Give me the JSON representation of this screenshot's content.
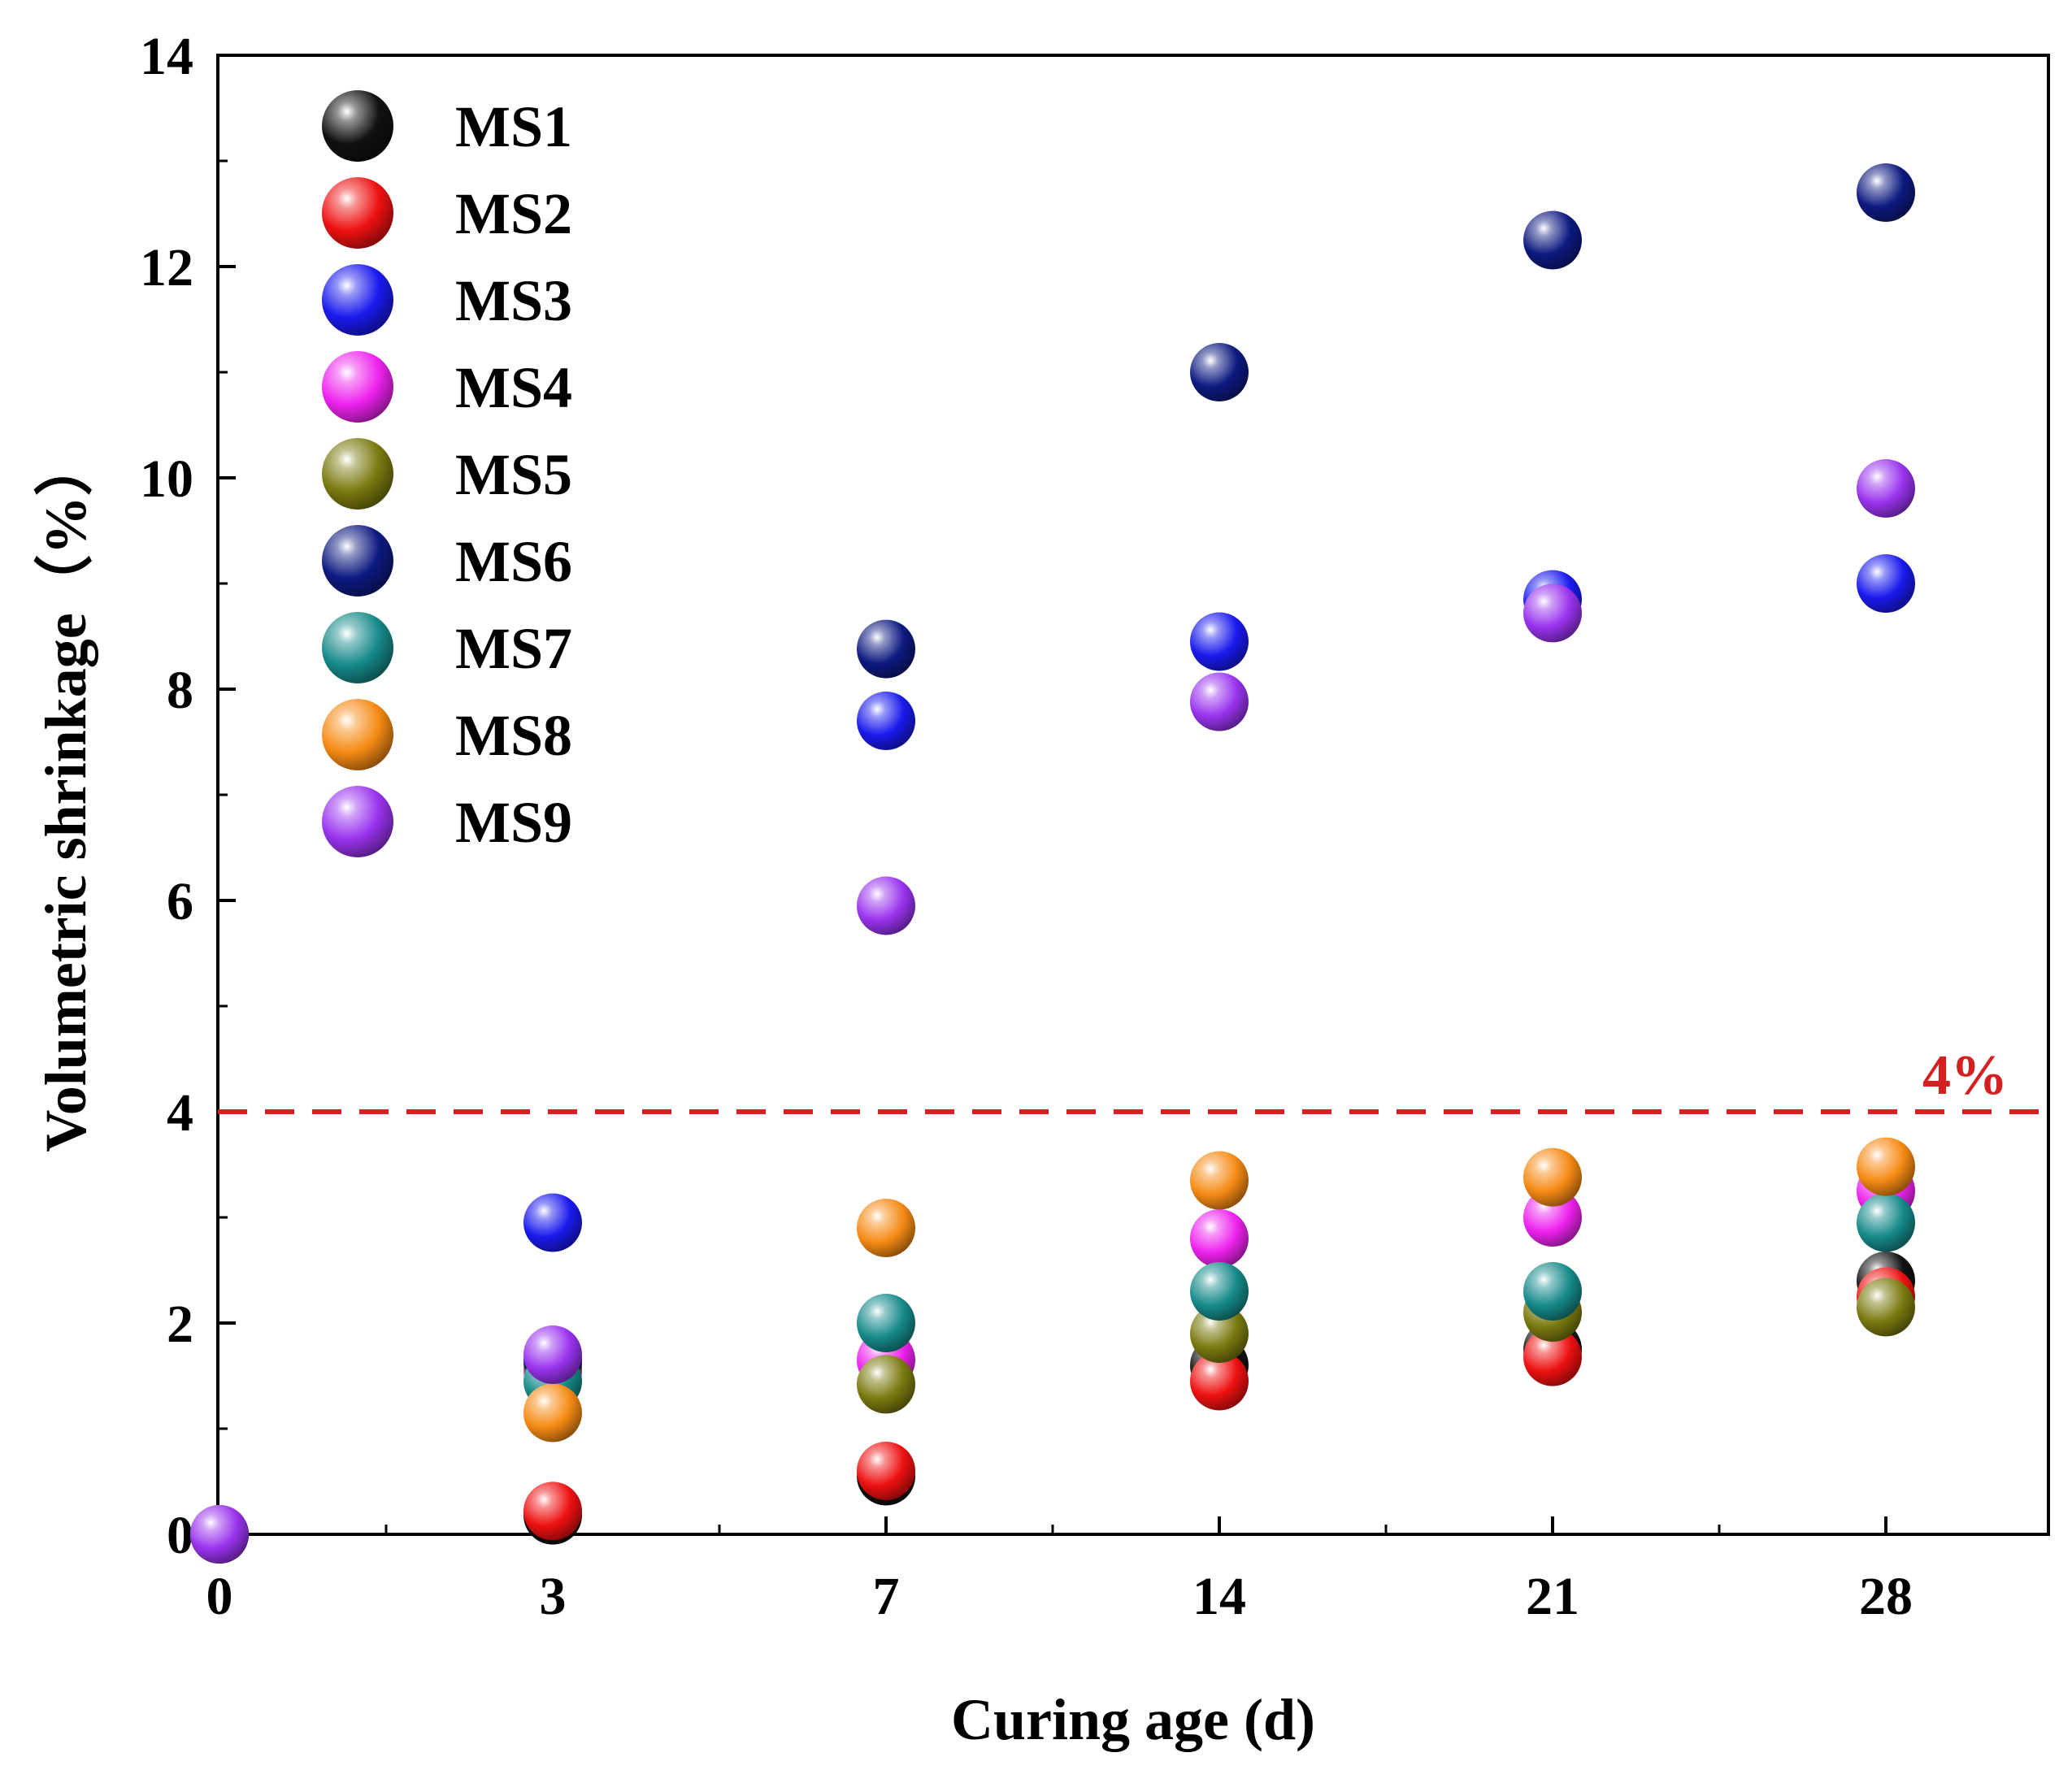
{
  "chart_data": {
    "type": "scatter",
    "xlabel": "Curing age (d)",
    "ylabel": "Volumetric shrinkage（%）",
    "x_ticks": [
      0,
      3,
      7,
      14,
      21,
      28
    ],
    "y_ticks": [
      0,
      2,
      4,
      6,
      8,
      10,
      12,
      14
    ],
    "ylim": [
      0,
      14
    ],
    "reference_line": {
      "y": 4,
      "label": "4%",
      "color": "#d42020"
    },
    "legend_position": "top-left",
    "series": [
      {
        "name": "MS1",
        "color": "#111111",
        "x": [
          0,
          3,
          7,
          14,
          21,
          28
        ],
        "y": [
          0,
          0.18,
          0.55,
          1.6,
          1.75,
          2.4
        ]
      },
      {
        "name": "MS2",
        "color": "#ee1111",
        "x": [
          0,
          3,
          7,
          14,
          21,
          28
        ],
        "y": [
          0,
          0.22,
          0.6,
          1.45,
          1.68,
          2.25
        ]
      },
      {
        "name": "MS3",
        "color": "#1a1aee",
        "x": [
          0,
          3,
          7,
          14,
          21,
          28
        ],
        "y": [
          0,
          2.95,
          7.7,
          8.45,
          8.85,
          9.0
        ]
      },
      {
        "name": "MS4",
        "color": "#ee22ee",
        "x": [
          0,
          3,
          7,
          14,
          21,
          28
        ],
        "y": [
          0,
          1.55,
          1.65,
          2.8,
          3.0,
          3.25
        ]
      },
      {
        "name": "MS5",
        "color": "#7a7a10",
        "x": [
          0,
          3,
          7,
          14,
          21,
          28
        ],
        "y": [
          0,
          1.6,
          1.42,
          1.9,
          2.1,
          2.15
        ]
      },
      {
        "name": "MS6",
        "color": "#0d1a80",
        "x": [
          0,
          3,
          7,
          14,
          21,
          28
        ],
        "y": [
          0,
          1.65,
          8.38,
          11.0,
          12.25,
          12.7
        ]
      },
      {
        "name": "MS7",
        "color": "#168a8a",
        "x": [
          0,
          3,
          7,
          14,
          21,
          28
        ],
        "y": [
          0,
          1.45,
          2.0,
          2.3,
          2.3,
          2.95
        ]
      },
      {
        "name": "MS8",
        "color": "#f58a14",
        "x": [
          0,
          3,
          7,
          14,
          21,
          28
        ],
        "y": [
          0,
          1.15,
          2.9,
          3.35,
          3.38,
          3.48
        ]
      },
      {
        "name": "MS9",
        "color": "#9933ee",
        "x": [
          0,
          3,
          7,
          14,
          21,
          28
        ],
        "y": [
          0,
          1.7,
          5.95,
          7.88,
          8.72,
          9.9
        ]
      }
    ]
  }
}
